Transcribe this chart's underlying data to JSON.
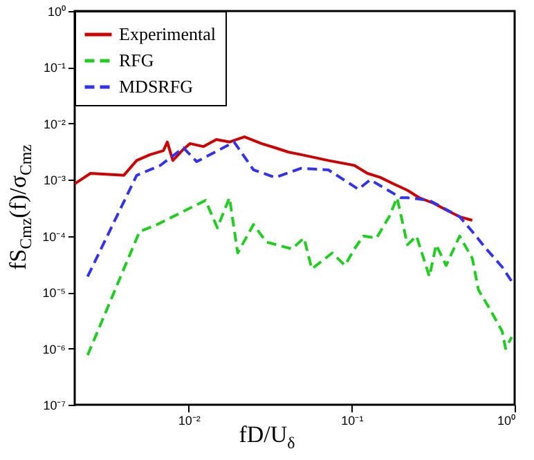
{
  "chart_data": {
    "type": "line",
    "xlabel": "fD/U$_{δ}$",
    "ylabel": "fS$_{Cmz}$(f)/σ$_{Cmz}$",
    "log": "xy",
    "legend": "top left",
    "grid": false,
    "xlim": [
      0.002,
      1
    ],
    "xticks": [
      {
        "value": 0.01,
        "label": "10⁻²"
      },
      {
        "value": 0.1,
        "label": "10⁻¹"
      },
      {
        "value": 1,
        "label": "10⁰"
      }
    ],
    "ylim": [
      1e-07,
      1
    ],
    "yticks": [
      {
        "value": 1e-07,
        "label": "10⁻⁷"
      },
      {
        "value": 1e-06,
        "label": "10⁻⁶"
      },
      {
        "value": 1e-05,
        "label": "10⁻⁵"
      },
      {
        "value": 0.0001,
        "label": "10⁻⁴"
      },
      {
        "value": 0.001,
        "label": "10⁻³"
      },
      {
        "value": 0.01,
        "label": "10⁻²"
      },
      {
        "value": 0.1,
        "label": "10⁻¹"
      },
      {
        "value": 1,
        "label": "10⁰"
      }
    ],
    "series": [
      {
        "name": "Experimental",
        "color": "#cc0000",
        "line_style": "solid",
        "x": [
          0.002,
          0.0025,
          0.004,
          0.0048,
          0.0058,
          0.007,
          0.0074,
          0.008,
          0.0093,
          0.0102,
          0.0123,
          0.0148,
          0.0178,
          0.022,
          0.028,
          0.034,
          0.041,
          0.049,
          0.072,
          0.104,
          0.125,
          0.15,
          0.18,
          0.22,
          0.26,
          0.32,
          0.38,
          0.46,
          0.55
        ],
        "values": [
          0.00085,
          0.0013,
          0.0012,
          0.0022,
          0.0028,
          0.0033,
          0.0047,
          0.0022,
          0.0035,
          0.0044,
          0.0039,
          0.0052,
          0.0047,
          0.0058,
          0.0044,
          0.0037,
          0.0031,
          0.0028,
          0.0022,
          0.0018,
          0.0013,
          0.0011,
          0.00085,
          0.00065,
          0.00048,
          0.00038,
          0.00029,
          0.00022,
          0.00019
        ]
      },
      {
        "name": "RFG",
        "color": "#22cc22",
        "line_style": "dashed",
        "x": [
          0.0024,
          0.005,
          0.0064,
          0.0127,
          0.015,
          0.0178,
          0.02,
          0.025,
          0.03,
          0.043,
          0.051,
          0.057,
          0.076,
          0.091,
          0.104,
          0.118,
          0.142,
          0.17,
          0.19,
          0.22,
          0.25,
          0.3,
          0.33,
          0.38,
          0.46,
          0.55,
          0.6,
          0.7,
          0.84,
          0.88,
          0.96
        ],
        "values": [
          7.6e-07,
          0.00012,
          0.00016,
          0.00043,
          0.00014,
          0.00048,
          5e-05,
          0.00016,
          7.8e-05,
          5.9e-05,
          9.2e-05,
          2.6e-05,
          5e-05,
          3e-05,
          5.9e-05,
          0.0001,
          9.2e-05,
          0.00022,
          0.00048,
          7e-05,
          0.0001,
          1.9e-05,
          7e-05,
          3e-05,
          0.0001,
          4e-05,
          1.1e-05,
          5.2e-06,
          2e-06,
          1e-06,
          1.6e-06
        ]
      },
      {
        "name": "MDSRFG",
        "color": "#3333ee",
        "line_style": "dashed",
        "x": [
          0.0024,
          0.0048,
          0.0067,
          0.0093,
          0.0112,
          0.019,
          0.025,
          0.034,
          0.049,
          0.072,
          0.11,
          0.13,
          0.2,
          0.22,
          0.3,
          0.46,
          0.55,
          0.67,
          0.84,
          1
        ],
        "values": [
          1.9e-05,
          0.0012,
          0.0018,
          0.0037,
          0.0021,
          0.0047,
          0.0015,
          0.0011,
          0.0016,
          0.0015,
          0.00068,
          0.001,
          0.00048,
          0.00048,
          0.00043,
          0.00022,
          0.00012,
          5.9e-05,
          2.8e-05,
          1.3e-05
        ]
      }
    ]
  }
}
